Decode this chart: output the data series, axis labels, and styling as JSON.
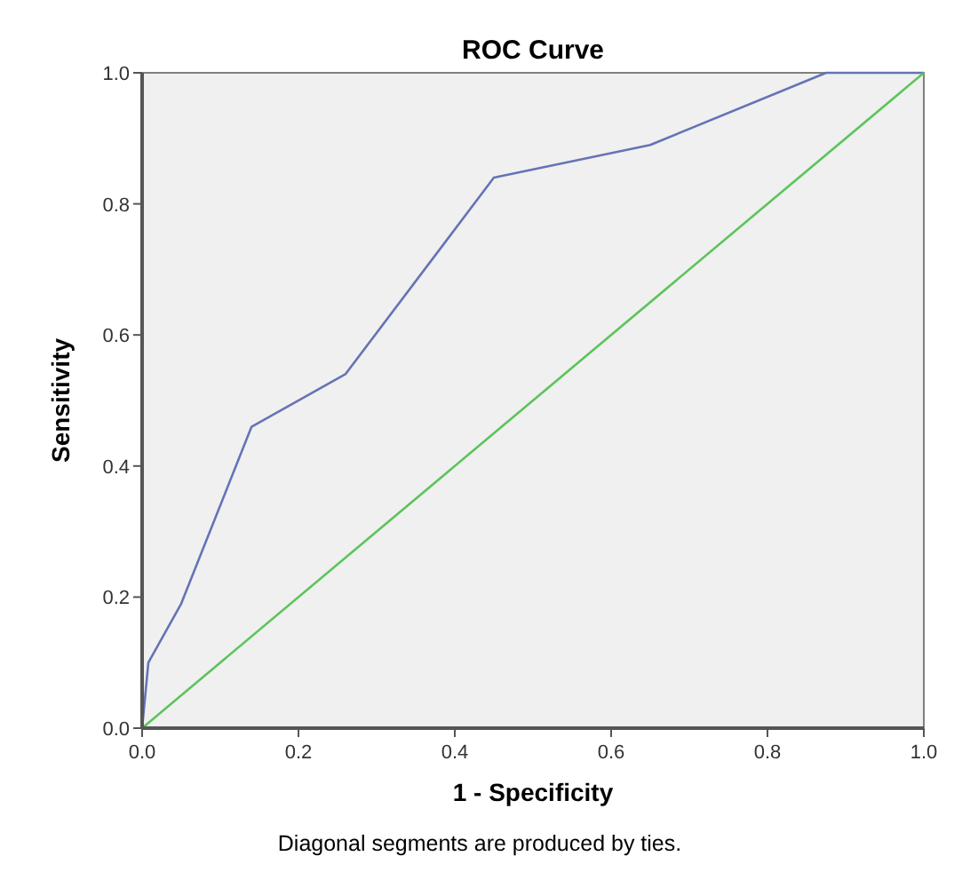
{
  "chart_data": {
    "type": "line",
    "title": "ROC Curve",
    "xlabel": "1 - Specificity",
    "ylabel": "Sensitivity",
    "series": [
      {
        "color": "#6673b5",
        "x": [
          0,
          0.008,
          0.05,
          0.14,
          0.26,
          0.45,
          0.65,
          0.875,
          1
        ],
        "values": [
          0,
          0.1,
          0.19,
          0.46,
          0.54,
          0.84,
          0.89,
          1,
          1
        ]
      },
      {
        "color": "#5cc45c",
        "x": [
          0,
          1
        ],
        "values": [
          0,
          1
        ]
      }
    ],
    "xlim": [
      0,
      1
    ],
    "ylim": [
      0,
      1
    ],
    "xticks": [
      {
        "value": 0,
        "label": "0.0"
      },
      0.2,
      0.4,
      0.6,
      0.8,
      {
        "value": 1,
        "label": "1.0"
      }
    ],
    "yticks": [
      {
        "value": 0,
        "label": "0.0"
      },
      0.2,
      0.4,
      0.6,
      0.8,
      {
        "value": 1,
        "label": "1.0"
      }
    ],
    "annotations": [
      "Diagonal segments are produced by ties."
    ]
  }
}
